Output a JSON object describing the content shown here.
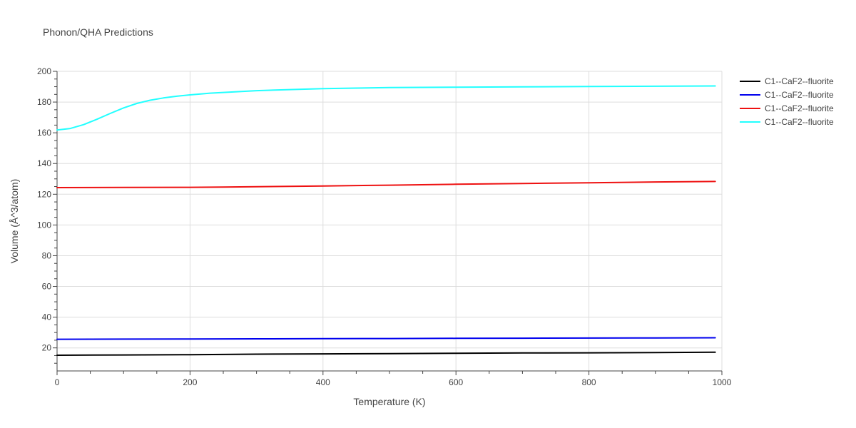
{
  "chart_data": {
    "type": "line",
    "title": "Phonon/QHA Predictions",
    "xlabel": "Temperature (K)",
    "ylabel": "Volume (Å^3/atom)",
    "xlim": [
      0,
      1000
    ],
    "ylim": [
      5,
      200
    ],
    "xticks": [
      0,
      200,
      400,
      600,
      800,
      1000
    ],
    "yticks": [
      20,
      40,
      60,
      80,
      100,
      120,
      140,
      160,
      180,
      200
    ],
    "grid": true,
    "legend_position": "top-right",
    "series": [
      {
        "name": "C1--CaF2--fluorite",
        "color": "#000000",
        "x": [
          0,
          100,
          200,
          300,
          400,
          500,
          600,
          700,
          800,
          900,
          990
        ],
        "y": [
          15.2,
          15.4,
          15.6,
          15.9,
          16.1,
          16.3,
          16.5,
          16.7,
          16.8,
          17.0,
          17.2
        ]
      },
      {
        "name": "C1--CaF2--fluorite",
        "color": "#0000ee",
        "x": [
          0,
          100,
          200,
          300,
          400,
          500,
          600,
          700,
          800,
          900,
          990
        ],
        "y": [
          25.6,
          25.7,
          25.8,
          25.9,
          26.0,
          26.1,
          26.2,
          26.3,
          26.4,
          26.5,
          26.6
        ]
      },
      {
        "name": "C1--CaF2--fluorite",
        "color": "#ee1111",
        "x": [
          0,
          100,
          200,
          250,
          300,
          400,
          500,
          600,
          700,
          800,
          900,
          990
        ],
        "y": [
          124.3,
          124.4,
          124.5,
          124.7,
          124.9,
          125.4,
          125.9,
          126.5,
          127.0,
          127.5,
          128.0,
          128.3
        ]
      },
      {
        "name": "C1--CaF2--fluorite",
        "color": "#22ffff",
        "x": [
          0,
          20,
          40,
          60,
          80,
          100,
          120,
          140,
          160,
          180,
          200,
          230,
          260,
          300,
          350,
          400,
          450,
          500,
          600,
          700,
          800,
          900,
          990
        ],
        "y": [
          161.8,
          162.8,
          165.3,
          168.8,
          172.6,
          176.2,
          179.1,
          181.2,
          182.7,
          183.8,
          184.7,
          185.8,
          186.5,
          187.4,
          188.1,
          188.7,
          189.1,
          189.4,
          189.7,
          189.9,
          190.1,
          190.3,
          190.5
        ]
      }
    ]
  }
}
